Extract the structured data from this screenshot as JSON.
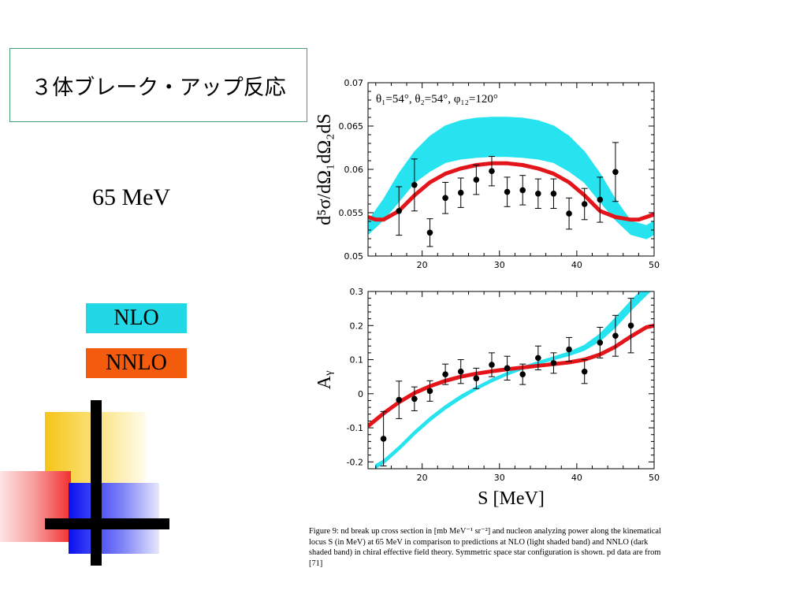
{
  "slide": {
    "title": "３体ブレーク・アップ反応",
    "energy_label": "65 MeV",
    "legend": [
      {
        "label": "NLO",
        "color": "#22d8e6"
      },
      {
        "label": "NNLO",
        "color": "#f25c0c"
      }
    ],
    "caption": "Figure 9:   nd break up cross section in [mb MeV⁻¹ sr⁻²] and nucleon analyzing power along the kinematical locus S (in MeV) at 65 MeV in comparison to predictions at NLO (light shaded band) and NNLO (dark shaded band) in chiral effective field theory. Symmetric space star configuration is shown. pd data are from [71]"
  },
  "chart_data": [
    {
      "type": "line",
      "ylabel": "d⁵σ/dΩ₁dΩ₂dS",
      "annotation": "θ₁=54°,   θ₂=54°,   φ₁₂=120°",
      "xlim": [
        13,
        50
      ],
      "ylim": [
        0.05,
        0.07
      ],
      "xticks": [
        20,
        30,
        40,
        50
      ],
      "yticks": [
        0.05,
        0.055,
        0.06,
        0.065,
        0.07
      ],
      "ytick_labels": [
        "0.05",
        "0.055",
        "0.06",
        "0.065",
        "0.07"
      ],
      "nlo_band": {
        "x": [
          13,
          15,
          17,
          19,
          21,
          23,
          25,
          27,
          29,
          31,
          33,
          35,
          37,
          39,
          41,
          43,
          45,
          47,
          49,
          50
        ],
        "low": [
          0.0525,
          0.0542,
          0.0563,
          0.0585,
          0.0598,
          0.0608,
          0.0612,
          0.0614,
          0.0615,
          0.0615,
          0.0614,
          0.0612,
          0.0608,
          0.0598,
          0.0585,
          0.0563,
          0.0542,
          0.0525,
          0.052,
          0.0525
        ],
        "high": [
          0.054,
          0.0565,
          0.0595,
          0.062,
          0.0638,
          0.065,
          0.0656,
          0.0659,
          0.066,
          0.066,
          0.0659,
          0.0656,
          0.065,
          0.0638,
          0.062,
          0.0595,
          0.0565,
          0.054,
          0.0535,
          0.054
        ]
      },
      "nnlo_line": {
        "x": [
          13,
          14,
          15,
          17,
          19,
          21,
          23,
          25,
          27,
          29,
          31,
          33,
          35,
          37,
          39,
          41,
          43,
          45,
          47,
          48,
          49,
          50
        ],
        "y": [
          0.0545,
          0.0542,
          0.0542,
          0.0552,
          0.057,
          0.0585,
          0.0595,
          0.0601,
          0.0605,
          0.0607,
          0.0607,
          0.0605,
          0.0601,
          0.0595,
          0.0585,
          0.057,
          0.0552,
          0.0545,
          0.0542,
          0.0542,
          0.0545,
          0.0548
        ]
      },
      "points": [
        {
          "x": 17,
          "y": 0.0552,
          "err": 0.0028
        },
        {
          "x": 19,
          "y": 0.0582,
          "err": 0.003
        },
        {
          "x": 21,
          "y": 0.0527,
          "err": 0.0016
        },
        {
          "x": 23,
          "y": 0.0567,
          "err": 0.0018
        },
        {
          "x": 25,
          "y": 0.0573,
          "err": 0.0017
        },
        {
          "x": 27,
          "y": 0.0588,
          "err": 0.0017
        },
        {
          "x": 29,
          "y": 0.0598,
          "err": 0.0017
        },
        {
          "x": 31,
          "y": 0.0574,
          "err": 0.0017
        },
        {
          "x": 33,
          "y": 0.0576,
          "err": 0.0017
        },
        {
          "x": 35,
          "y": 0.0572,
          "err": 0.0017
        },
        {
          "x": 37,
          "y": 0.0572,
          "err": 0.0017
        },
        {
          "x": 39,
          "y": 0.0549,
          "err": 0.0018
        },
        {
          "x": 41,
          "y": 0.056,
          "err": 0.0018
        },
        {
          "x": 43,
          "y": 0.0565,
          "err": 0.0026
        },
        {
          "x": 45,
          "y": 0.0597,
          "err": 0.0034
        }
      ]
    },
    {
      "type": "line",
      "xlabel": "S [MeV]",
      "ylabel": "Aᵧ",
      "xlim": [
        13,
        50
      ],
      "ylim": [
        -0.22,
        0.3
      ],
      "xticks": [
        20,
        30,
        40,
        50
      ],
      "yticks": [
        -0.2,
        -0.1,
        0,
        0.1,
        0.2,
        0.3
      ],
      "ytick_labels": [
        "-0.2",
        "-0.1",
        "0",
        "0.1",
        "0.2",
        "0.3"
      ],
      "nlo_band": {
        "x": [
          14,
          15,
          17,
          19,
          21,
          23,
          25,
          27,
          29,
          31,
          33,
          35,
          37,
          39,
          41,
          43,
          45,
          47,
          49,
          50
        ],
        "low": [
          -0.218,
          -0.205,
          -0.165,
          -0.12,
          -0.08,
          -0.045,
          -0.015,
          0.012,
          0.035,
          0.055,
          0.072,
          0.087,
          0.1,
          0.112,
          0.128,
          0.155,
          0.195,
          0.245,
          0.29,
          0.31
        ],
        "high": [
          -0.208,
          -0.195,
          -0.155,
          -0.11,
          -0.07,
          -0.035,
          -0.005,
          0.02,
          0.043,
          0.062,
          0.079,
          0.094,
          0.108,
          0.122,
          0.142,
          0.175,
          0.222,
          0.272,
          0.318,
          0.335
        ]
      },
      "nnlo_line": {
        "x": [
          13,
          15,
          17,
          19,
          21,
          23,
          25,
          27,
          29,
          31,
          33,
          35,
          37,
          39,
          41,
          43,
          45,
          47,
          49,
          50
        ],
        "y": [
          -0.095,
          -0.058,
          -0.025,
          0.002,
          0.022,
          0.038,
          0.05,
          0.059,
          0.066,
          0.072,
          0.077,
          0.082,
          0.087,
          0.092,
          0.1,
          0.115,
          0.138,
          0.168,
          0.195,
          0.2
        ]
      },
      "points": [
        {
          "x": 15,
          "y": -0.132,
          "err": 0.08
        },
        {
          "x": 17,
          "y": -0.018,
          "err": 0.055
        },
        {
          "x": 19,
          "y": -0.015,
          "err": 0.035
        },
        {
          "x": 21,
          "y": 0.008,
          "err": 0.03
        },
        {
          "x": 23,
          "y": 0.057,
          "err": 0.03
        },
        {
          "x": 25,
          "y": 0.065,
          "err": 0.035
        },
        {
          "x": 27,
          "y": 0.045,
          "err": 0.03
        },
        {
          "x": 29,
          "y": 0.085,
          "err": 0.035
        },
        {
          "x": 31,
          "y": 0.075,
          "err": 0.035
        },
        {
          "x": 33,
          "y": 0.057,
          "err": 0.03
        },
        {
          "x": 35,
          "y": 0.105,
          "err": 0.035
        },
        {
          "x": 37,
          "y": 0.09,
          "err": 0.03
        },
        {
          "x": 39,
          "y": 0.13,
          "err": 0.035
        },
        {
          "x": 41,
          "y": 0.065,
          "err": 0.035
        },
        {
          "x": 43,
          "y": 0.15,
          "err": 0.045
        },
        {
          "x": 45,
          "y": 0.17,
          "err": 0.06
        },
        {
          "x": 47,
          "y": 0.2,
          "err": 0.08
        }
      ]
    }
  ]
}
